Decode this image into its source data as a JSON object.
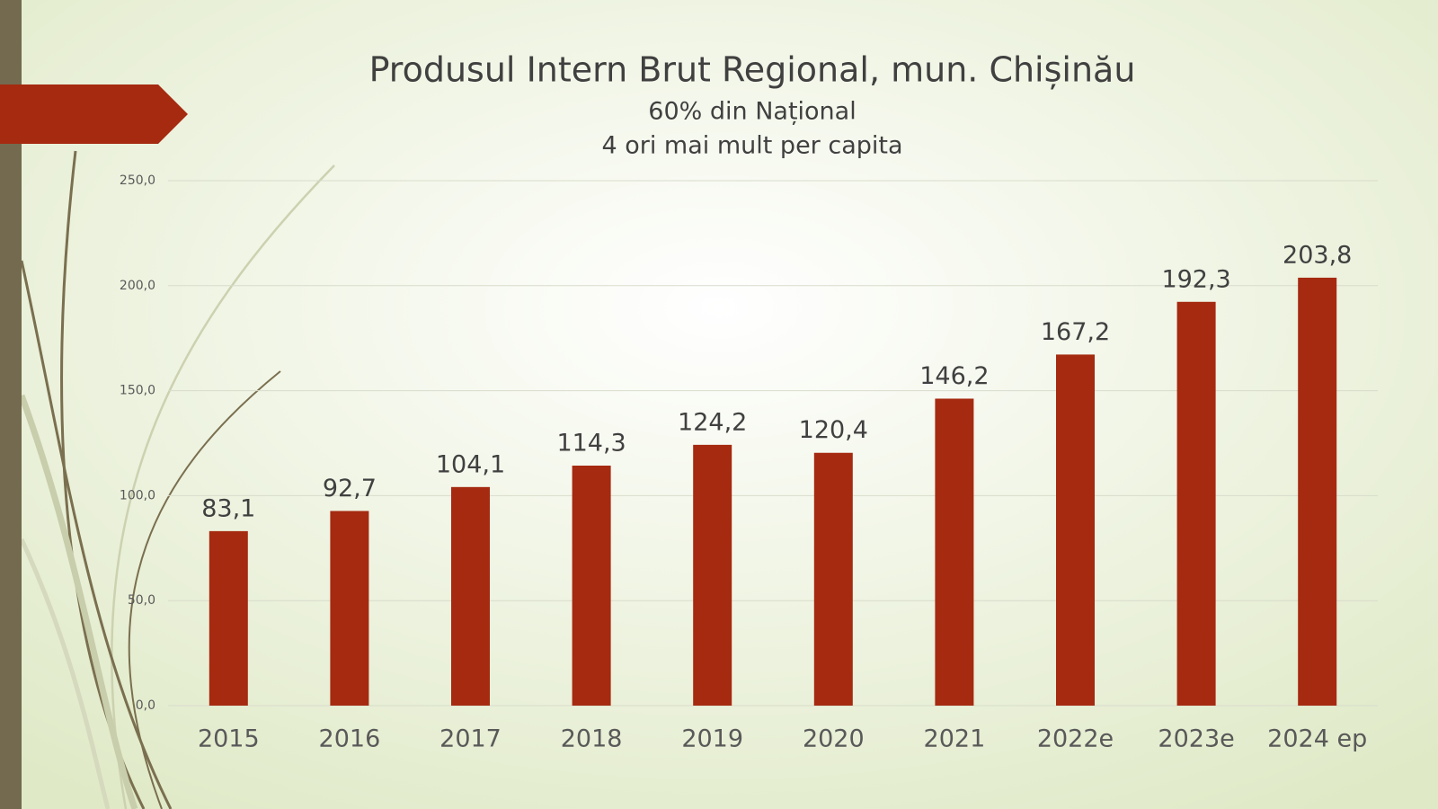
{
  "chart_data": {
    "type": "bar",
    "title": "Produsul Intern Brut Regional, mun. Chișinău",
    "subtitles": [
      "60% din Național",
      "4 ori mai mult per capita"
    ],
    "categories": [
      "2015",
      "2016",
      "2017",
      "2018",
      "2019",
      "2020",
      "2021",
      "2022e",
      "2023e",
      "2024 ep"
    ],
    "values": [
      83.1,
      92.7,
      104.1,
      114.3,
      124.2,
      120.4,
      146.2,
      167.2,
      192.3,
      203.8
    ],
    "value_labels": [
      "83,1",
      "92,7",
      "104,1",
      "114,3",
      "124,2",
      "120,4",
      "146,2",
      "167,2",
      "192,3",
      "203,8"
    ],
    "color": "#a52a10",
    "ylim": [
      0,
      250
    ],
    "yticks": [
      {
        "value": 0,
        "label": "0,0"
      },
      {
        "value": 50,
        "label": "50,0"
      },
      {
        "value": 100,
        "label": "100,0"
      },
      {
        "value": 150,
        "label": "150,0"
      },
      {
        "value": 200,
        "label": "200,0"
      },
      {
        "value": 250,
        "label": "250,0"
      }
    ],
    "grid": true
  }
}
